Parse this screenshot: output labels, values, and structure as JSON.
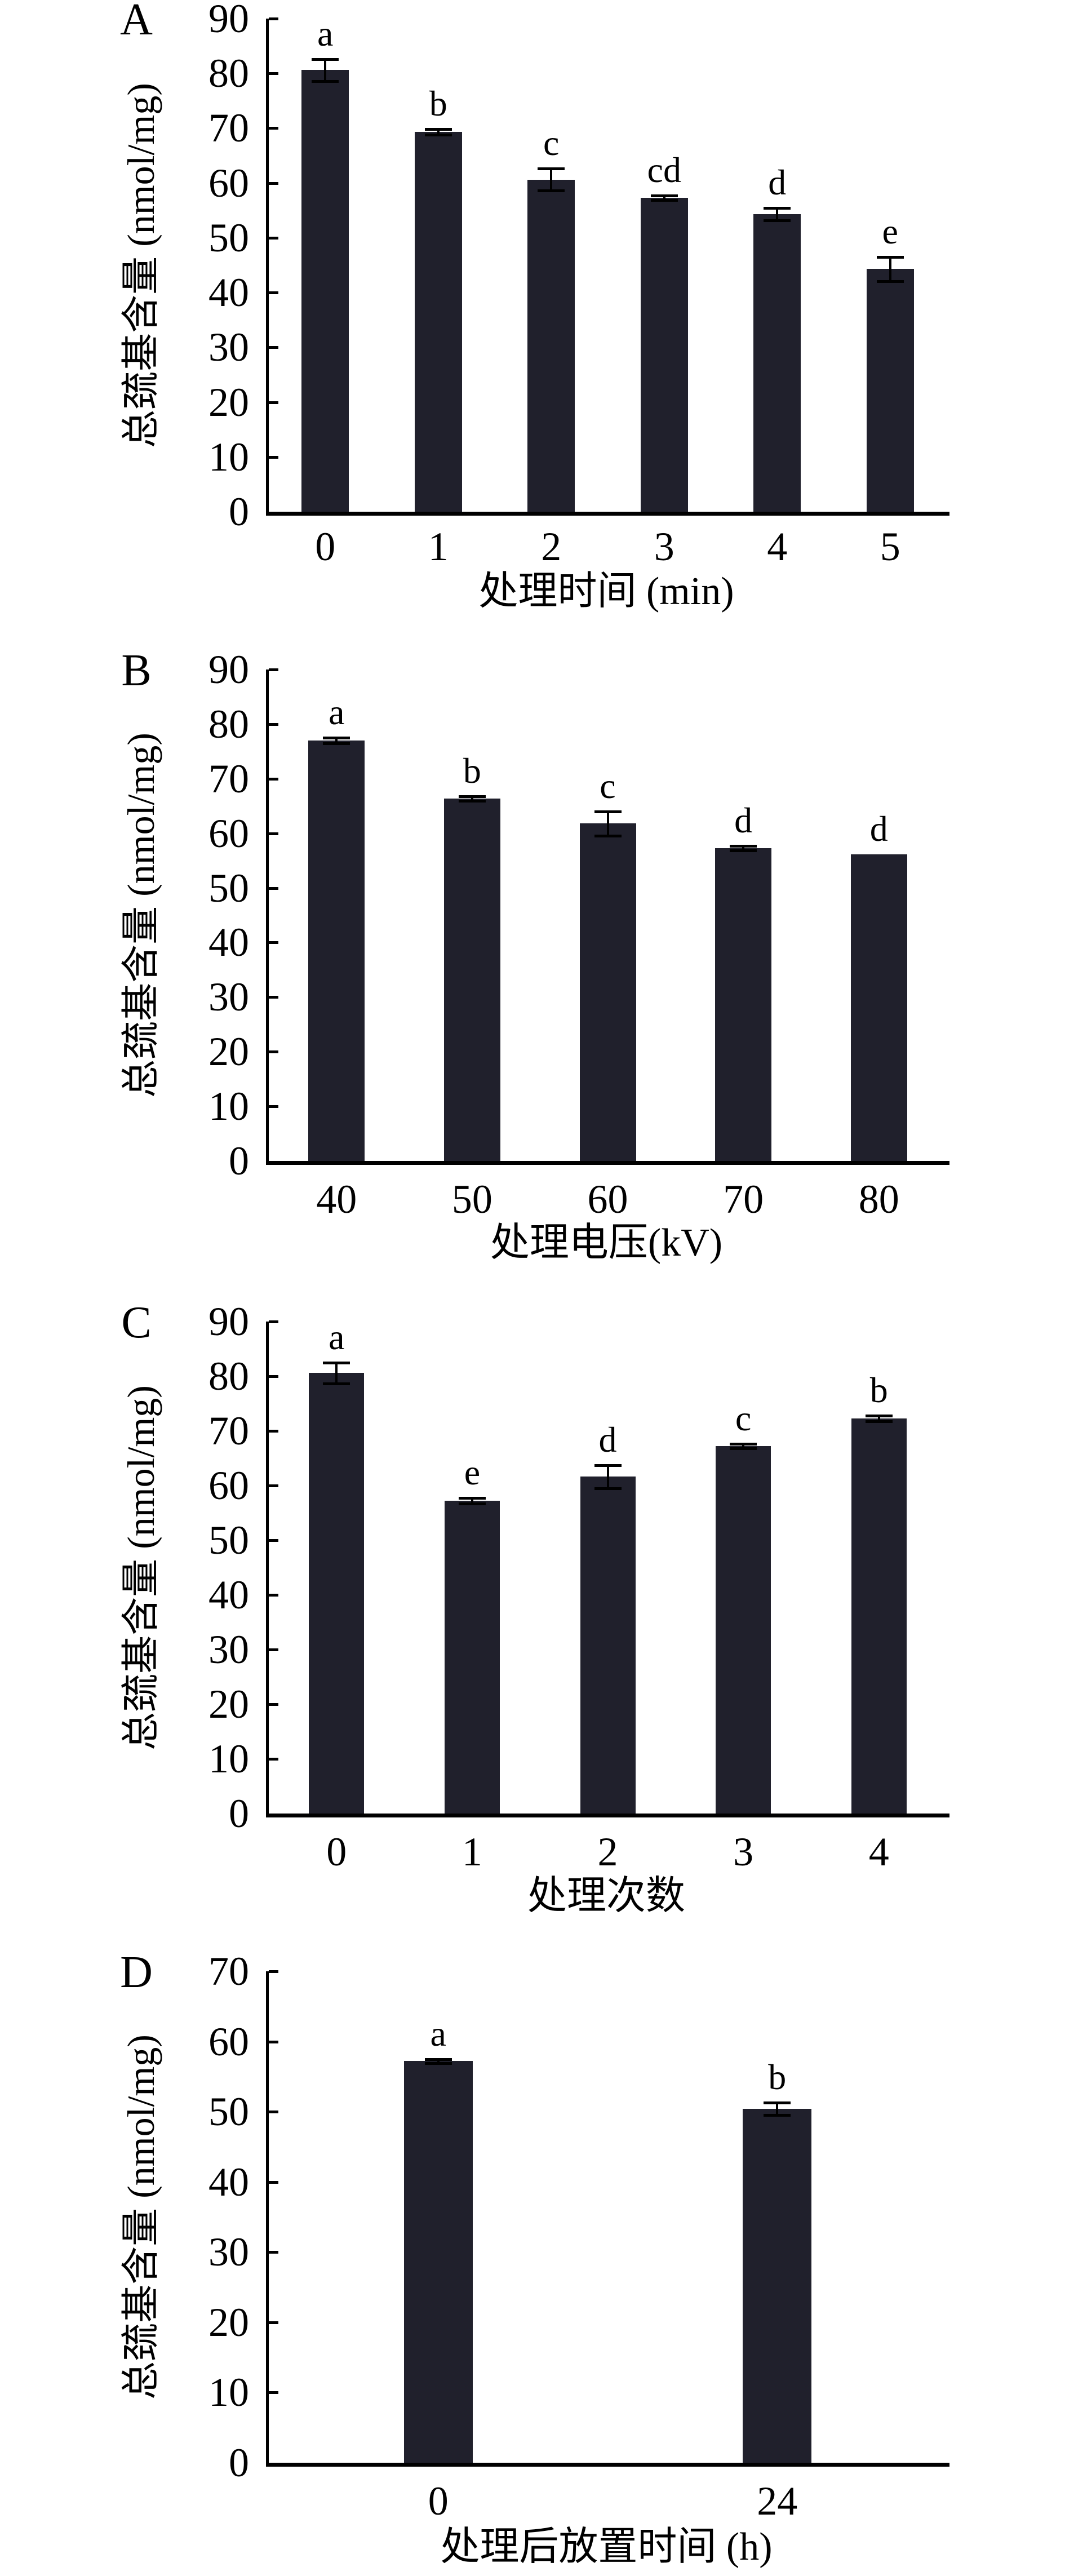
{
  "figure": {
    "background": "#ffffff",
    "bar_color": "#20202c",
    "axis_color": "#000000",
    "shared_ylabel": "总巯基含量 (nmol/mg)"
  },
  "chart_data": [
    {
      "type": "bar",
      "panel_label": "A",
      "title": "",
      "xlabel": "处理时间 (min)",
      "ylabel": "总巯基含量 (nmol/mg)",
      "ylim": [
        0,
        90
      ],
      "ytick_step": 10,
      "grid": false,
      "yticks": [
        "0",
        "10",
        "20",
        "30",
        "40",
        "50",
        "60",
        "70",
        "80",
        "90"
      ],
      "categories": [
        "0",
        "1",
        "2",
        "3",
        "4",
        "5"
      ],
      "values": [
        80.6,
        69.3,
        60.6,
        57.3,
        54.3,
        44.3
      ],
      "errors": [
        2.0,
        0.5,
        2.0,
        0.4,
        1.1,
        2.2
      ],
      "sig_letters": [
        "a",
        "b",
        "c",
        "cd",
        "d",
        "e"
      ]
    },
    {
      "type": "bar",
      "panel_label": "B",
      "title": "",
      "xlabel": "处理电压(kV)",
      "ylabel": "总巯基含量 (nmol/mg)",
      "ylim": [
        0,
        90
      ],
      "ytick_step": 10,
      "grid": false,
      "yticks": [
        "0",
        "10",
        "20",
        "30",
        "40",
        "50",
        "60",
        "70",
        "80",
        "90"
      ],
      "categories": [
        "40",
        "50",
        "60",
        "70",
        "80"
      ],
      "values": [
        77.0,
        66.4,
        61.8,
        57.3,
        56.1
      ],
      "errors": [
        0.5,
        0.4,
        2.2,
        0.4,
        0
      ],
      "sig_letters": [
        "a",
        "b",
        "c",
        "d",
        "d"
      ]
    },
    {
      "type": "bar",
      "panel_label": "C",
      "title": "",
      "xlabel": "处理次数",
      "ylabel": "总巯基含量 (nmol/mg)",
      "ylim": [
        0,
        90
      ],
      "ytick_step": 10,
      "grid": false,
      "yticks": [
        "0",
        "10",
        "20",
        "30",
        "40",
        "50",
        "60",
        "70",
        "80",
        "90"
      ],
      "categories": [
        "0",
        "1",
        "2",
        "3",
        "4"
      ],
      "values": [
        80.6,
        57.2,
        61.6,
        67.2,
        72.3
      ],
      "errors": [
        1.9,
        0.5,
        2.1,
        0.4,
        0.5
      ],
      "sig_letters": [
        "a",
        "e",
        "d",
        "c",
        "b"
      ]
    },
    {
      "type": "bar",
      "panel_label": "D",
      "title": "",
      "xlabel": "处理后放置时间 (h)",
      "ylabel": "总巯基含量 (nmol/mg)",
      "ylim": [
        0,
        70
      ],
      "ytick_step": 10,
      "grid": false,
      "yticks": [
        "0",
        "10",
        "20",
        "30",
        "40",
        "50",
        "60",
        "70"
      ],
      "categories": [
        "0",
        "24"
      ],
      "values": [
        57.2,
        50.4
      ],
      "errors": [
        0.3,
        0.9
      ],
      "sig_letters": [
        "a",
        "b"
      ]
    }
  ]
}
